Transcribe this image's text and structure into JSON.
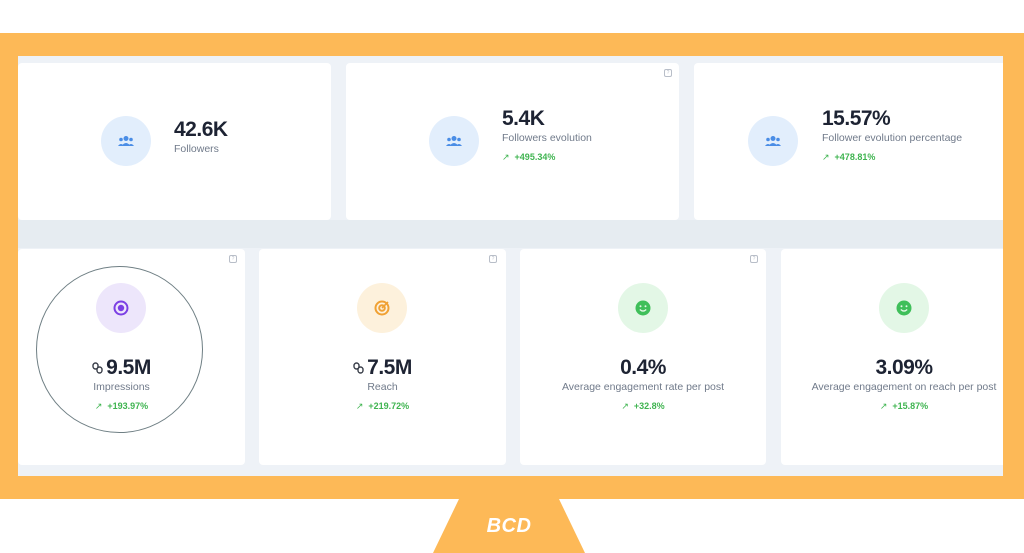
{
  "cards_top": [
    {
      "value": "42.6K",
      "label": "Followers",
      "delta": ""
    },
    {
      "value": "5.4K",
      "label": "Followers evolution",
      "delta": "+495.34%"
    },
    {
      "value": "15.57%",
      "label": "Follower evolution percentage",
      "delta": "+478.81%"
    }
  ],
  "cards_bottom": [
    {
      "value": "9.5M",
      "label": "Impressions",
      "delta": "+193.97%"
    },
    {
      "value": "7.5M",
      "label": "Reach",
      "delta": "+219.72%"
    },
    {
      "value": "0.4%",
      "label": "Average engagement rate per post",
      "delta": "+32.8%"
    },
    {
      "value": "3.09%",
      "label": "Average engagement on reach per post",
      "delta": "+15.87%"
    }
  ],
  "icons": {
    "users": "users-icon",
    "impressions": "eye-icon",
    "reach": "target-icon",
    "engagement": "smiley-icon",
    "link": "link-icon",
    "trend": "trend-up-icon",
    "help": "help-icon"
  },
  "help_glyph": "?",
  "trend_glyph": "↗",
  "badge": {
    "text": "BCD"
  },
  "colors": {
    "frame": "#fdb957",
    "delta": "#3fb450",
    "value": "#1d2333"
  }
}
